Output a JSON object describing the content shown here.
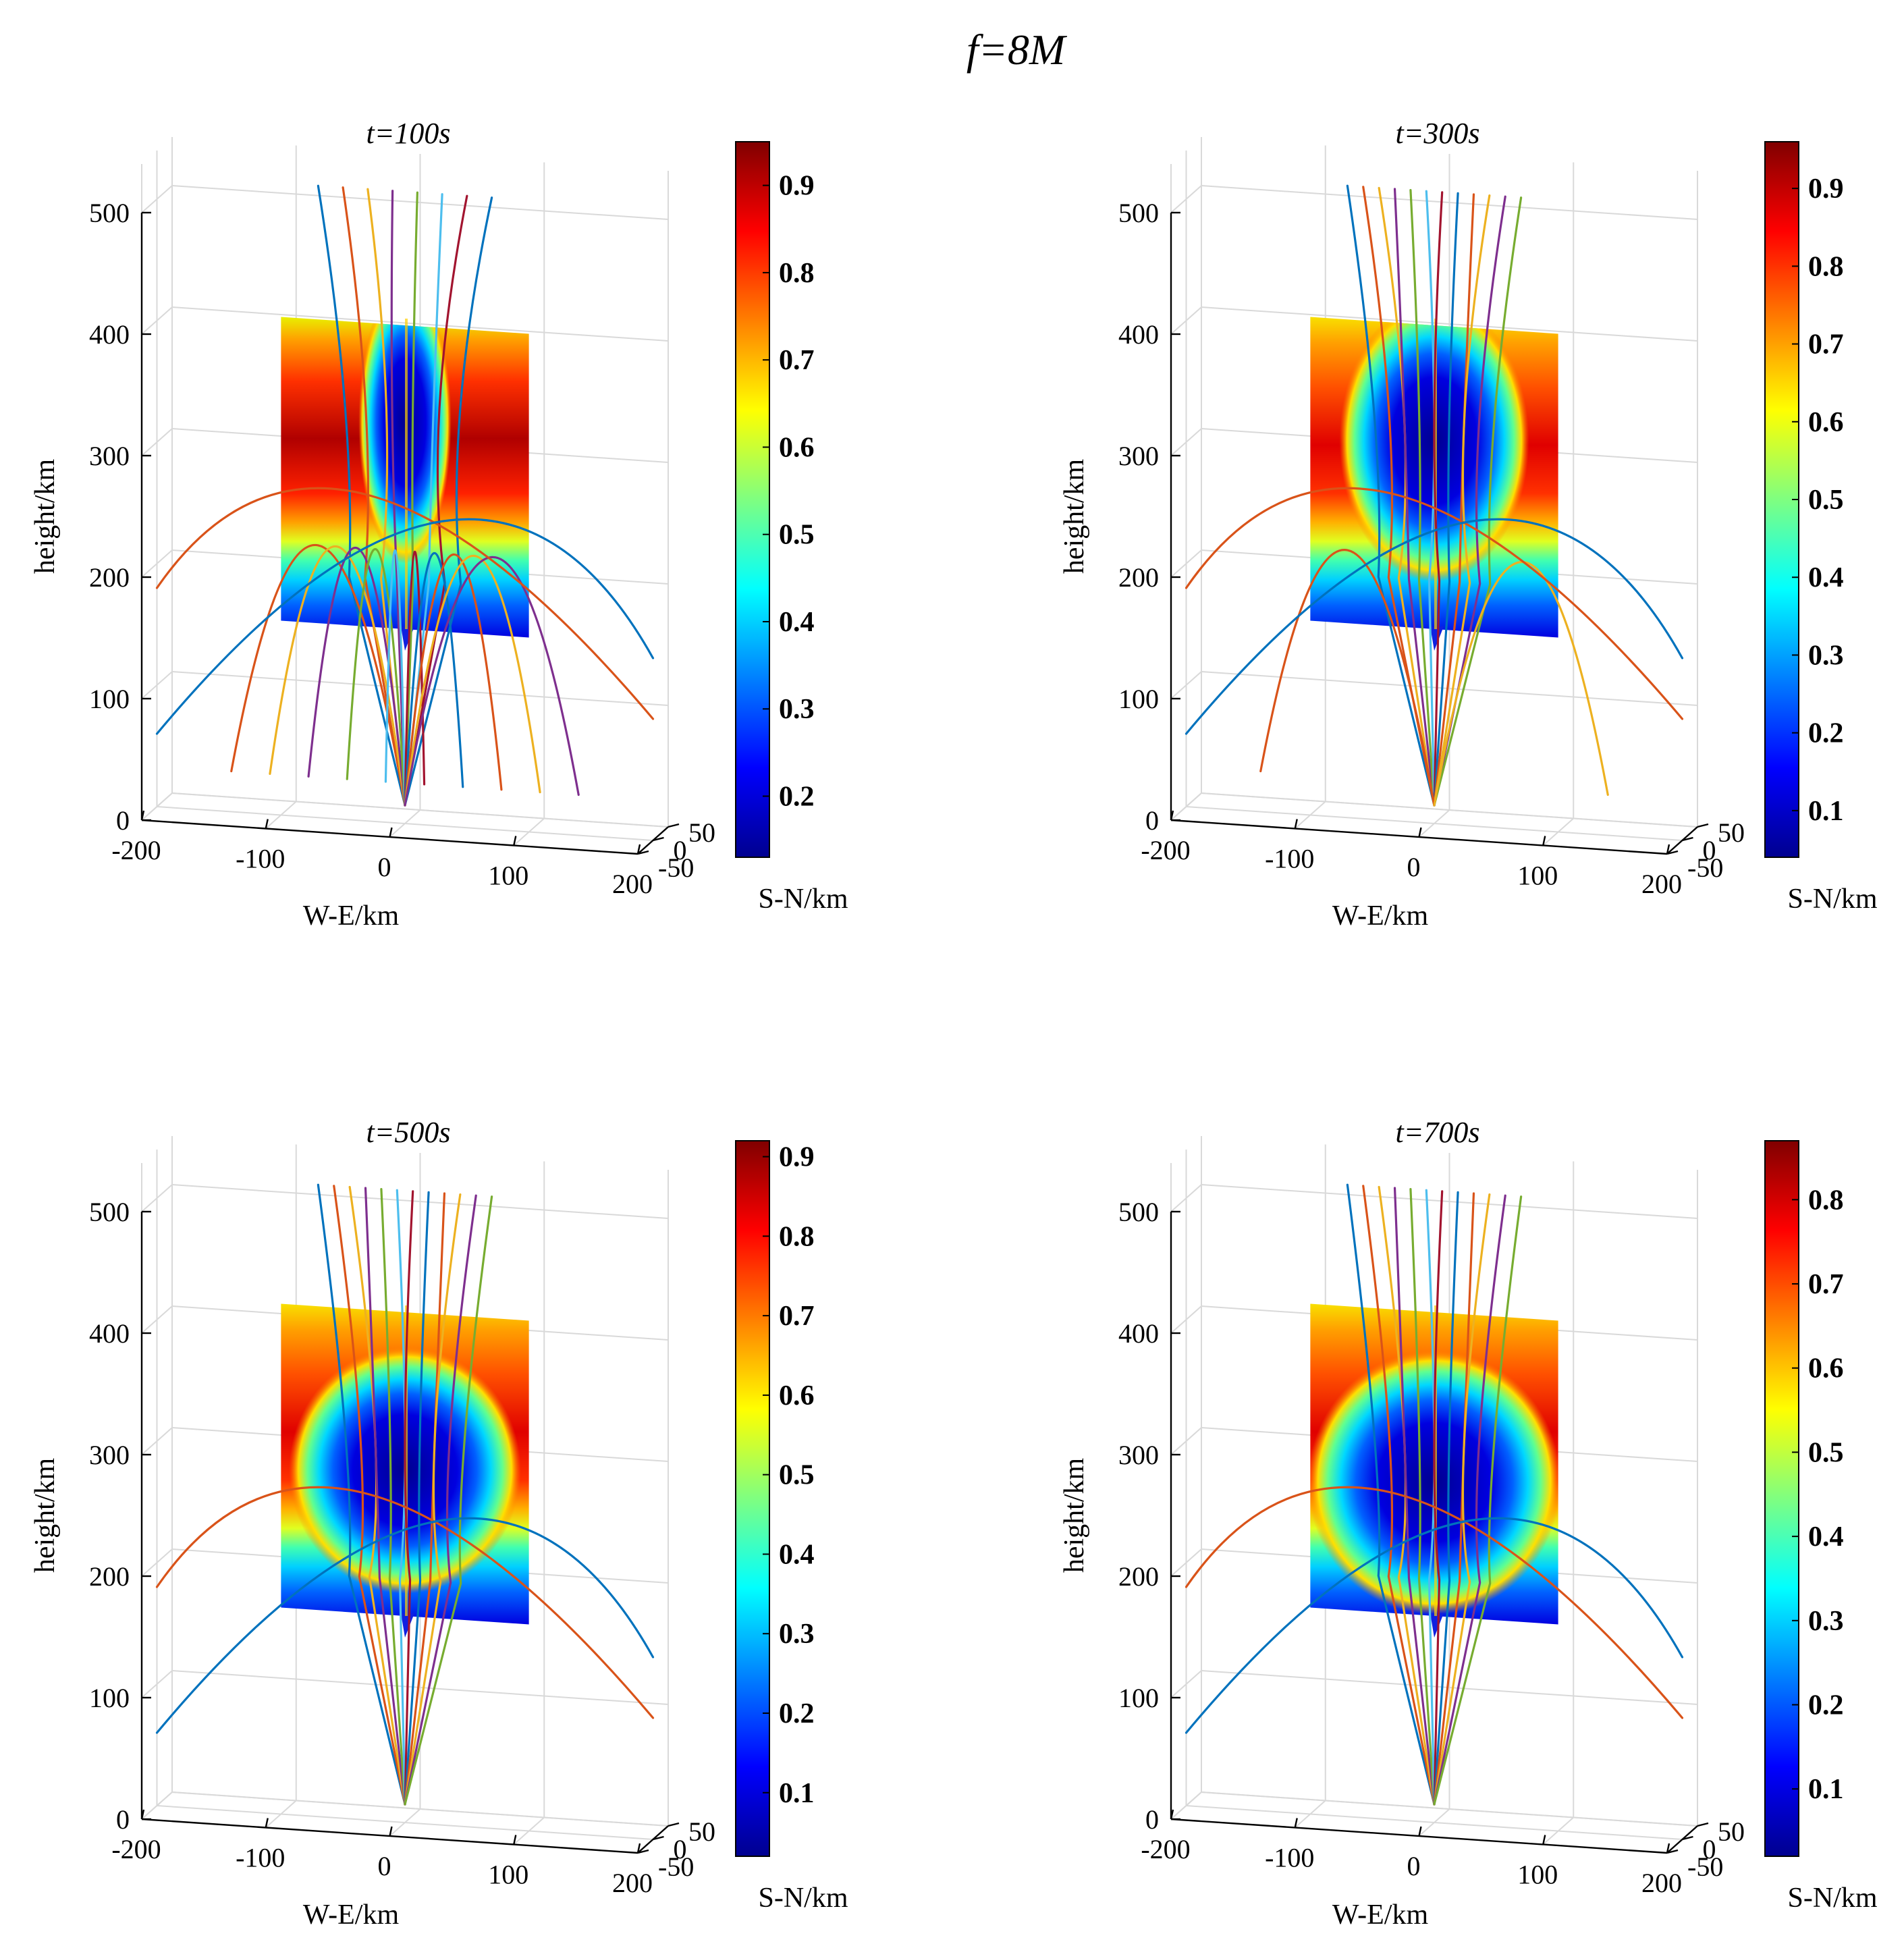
{
  "figure": {
    "title": "f=8M"
  },
  "chart_data": [
    {
      "type": "surface3d",
      "title": "t=100s",
      "xlabel": "W-E/km",
      "ylabel": "S-N/km",
      "zlabel": "height/km",
      "xticks": [
        "-200",
        "-100",
        "0",
        "100",
        "200"
      ],
      "yticks": [
        "50",
        "0",
        "-50"
      ],
      "zticks": [
        "0",
        "100",
        "200",
        "300",
        "400",
        "500"
      ],
      "xlim": [
        -200,
        200
      ],
      "ylim": [
        -50,
        50
      ],
      "zlim": [
        0,
        500
      ],
      "slice": {
        "x_range": [
          -100,
          100
        ],
        "z_range": [
          160,
          410
        ],
        "depletion_center_z": 330,
        "depletion_rx_km": 22,
        "depletion_rz_km": 80
      },
      "colorbar": {
        "colormap": "jet",
        "range": [
          0.13,
          0.95
        ],
        "ticks": [
          "0.2",
          "0.3",
          "0.4",
          "0.5",
          "0.6",
          "0.7",
          "0.8",
          "0.9"
        ],
        "tick_values": [
          0.2,
          0.3,
          0.4,
          0.5,
          0.6,
          0.7,
          0.8,
          0.9
        ]
      },
      "ray_bundle": {
        "source_x_km": 0,
        "source_z_km": 15,
        "rays_to_top": 8,
        "reflected_rays": 10,
        "max_reflection_height_km": 265
      }
    },
    {
      "type": "surface3d",
      "title": "t=300s",
      "xlabel": "W-E/km",
      "ylabel": "S-N/km",
      "zlabel": "height/km",
      "xticks": [
        "-200",
        "-100",
        "0",
        "100",
        "200"
      ],
      "yticks": [
        "50",
        "0",
        "-50"
      ],
      "zticks": [
        "0",
        "100",
        "200",
        "300",
        "400",
        "500"
      ],
      "xlim": [
        -200,
        200
      ],
      "ylim": [
        -50,
        50
      ],
      "zlim": [
        0,
        500
      ],
      "slice": {
        "x_range": [
          -100,
          100
        ],
        "z_range": [
          160,
          410
        ],
        "depletion_center_z": 315,
        "depletion_rx_km": 45,
        "depletion_rz_km": 80
      },
      "colorbar": {
        "colormap": "jet",
        "range": [
          0.04,
          0.96
        ],
        "ticks": [
          "0.1",
          "0.2",
          "0.3",
          "0.4",
          "0.5",
          "0.6",
          "0.7",
          "0.8",
          "0.9"
        ],
        "tick_values": [
          0.1,
          0.2,
          0.3,
          0.4,
          0.5,
          0.6,
          0.7,
          0.8,
          0.9
        ]
      },
      "ray_bundle": {
        "source_x_km": 0,
        "source_z_km": 15,
        "rays_to_top": 12,
        "reflected_rays": 2,
        "max_reflection_height_km": 260
      }
    },
    {
      "type": "surface3d",
      "title": "t=500s",
      "xlabel": "W-E/km",
      "ylabel": "S-N/km",
      "zlabel": "height/km",
      "xticks": [
        "-200",
        "-100",
        "0",
        "100",
        "200"
      ],
      "yticks": [
        "50",
        "0",
        "-50"
      ],
      "zticks": [
        "0",
        "100",
        "200",
        "300",
        "400",
        "500"
      ],
      "xlim": [
        -200,
        200
      ],
      "ylim": [
        -50,
        50
      ],
      "zlim": [
        0,
        500
      ],
      "slice": {
        "x_range": [
          -100,
          100
        ],
        "z_range": [
          170,
          420
        ],
        "depletion_center_z": 290,
        "depletion_rx_km": 55,
        "depletion_rz_km": 70
      },
      "colorbar": {
        "colormap": "jet",
        "range": [
          0.02,
          0.92
        ],
        "ticks": [
          "0.1",
          "0.2",
          "0.3",
          "0.4",
          "0.5",
          "0.6",
          "0.7",
          "0.8",
          "0.9"
        ],
        "tick_values": [
          0.1,
          0.2,
          0.3,
          0.4,
          0.5,
          0.6,
          0.7,
          0.8,
          0.9
        ]
      },
      "ray_bundle": {
        "source_x_km": 0,
        "source_z_km": 15,
        "rays_to_top": 12,
        "reflected_rays": 0,
        "max_reflection_height_km": 0
      }
    },
    {
      "type": "surface3d",
      "title": "t=700s",
      "xlabel": "W-E/km",
      "ylabel": "S-N/km",
      "zlabel": "height/km",
      "xticks": [
        "-200",
        "-100",
        "0",
        "100",
        "200"
      ],
      "yticks": [
        "50",
        "0",
        "-50"
      ],
      "zticks": [
        "0",
        "100",
        "200",
        "300",
        "400",
        "500"
      ],
      "xlim": [
        -200,
        200
      ],
      "ylim": [
        -50,
        50
      ],
      "zlim": [
        0,
        500
      ],
      "slice": {
        "x_range": [
          -100,
          100
        ],
        "z_range": [
          170,
          420
        ],
        "depletion_center_z": 280,
        "depletion_rx_km": 60,
        "depletion_rz_km": 75
      },
      "colorbar": {
        "colormap": "jet",
        "range": [
          0.02,
          0.87
        ],
        "ticks": [
          "0.1",
          "0.2",
          "0.3",
          "0.4",
          "0.5",
          "0.6",
          "0.7",
          "0.8"
        ],
        "tick_values": [
          0.1,
          0.2,
          0.3,
          0.4,
          0.5,
          0.6,
          0.7,
          0.8
        ]
      },
      "ray_bundle": {
        "source_x_km": 0,
        "source_z_km": 15,
        "rays_to_top": 12,
        "reflected_rays": 0,
        "max_reflection_height_km": 0
      }
    }
  ],
  "ray_colors": [
    "#0072BD",
    "#D95319",
    "#EDB120",
    "#7E2F8E",
    "#77AC30",
    "#4DBEEE",
    "#A2142F"
  ]
}
